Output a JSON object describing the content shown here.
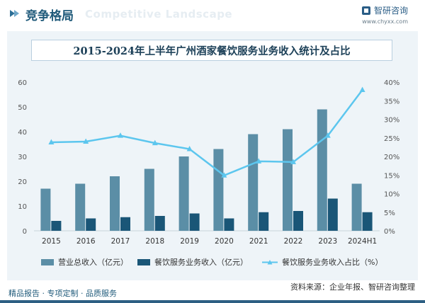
{
  "header": {
    "title": "竞争格局",
    "ghost_text": "Competitive Landscape",
    "logo_text": "智研咨询",
    "site": "www.chyxx.com"
  },
  "chart_title": "2015-2024年上半年广州酒家餐饮服务业务收入统计及占比",
  "chart_data": {
    "type": "bar",
    "categories": [
      "2015",
      "2016",
      "2017",
      "2018",
      "2019",
      "2020",
      "2021",
      "2022",
      "2023",
      "2024H1"
    ],
    "series": [
      {
        "name": "营业总收入（亿元）",
        "kind": "bar",
        "axis": "left",
        "color": "#5b8ea6",
        "values": [
          17,
          19,
          22,
          25,
          30,
          33,
          39,
          41,
          49,
          19
        ]
      },
      {
        "name": "餐饮服务业务收入（亿元）",
        "kind": "bar",
        "axis": "left",
        "color": "#1a5677",
        "values": [
          4,
          5,
          5.5,
          6,
          7,
          5,
          7.5,
          8,
          13,
          7.5
        ]
      },
      {
        "name": "餐饮服务业务收入占比（%）",
        "kind": "line",
        "axis": "right",
        "color": "#5cc6ee",
        "values": [
          23.8,
          24.0,
          25.6,
          23.6,
          22.0,
          14.9,
          18.7,
          18.5,
          25.6,
          37.9
        ]
      }
    ],
    "y_left": {
      "min": 0,
      "max": 60,
      "ticks": [
        0,
        10,
        20,
        30,
        40,
        50,
        60
      ]
    },
    "y_right": {
      "min": 0,
      "max": 40,
      "ticks": [
        "0%",
        "5%",
        "10%",
        "15%",
        "20%",
        "25%",
        "30%",
        "35%",
        "40%"
      ]
    },
    "grid": false,
    "legend": "bottom"
  },
  "legend": {
    "item1": "营业总收入（亿元）",
    "item2": "餐饮服务业务收入（亿元）",
    "item3": "餐饮服务业务收入占比（%）"
  },
  "footer": {
    "left": "精品报告 · 专项定制 · 品质服务",
    "right": "资料来源：企业年报、智研咨询整理"
  }
}
